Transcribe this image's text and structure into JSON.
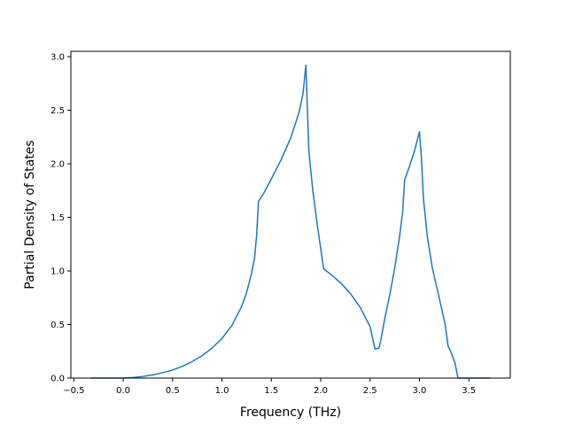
{
  "chart_data": {
    "type": "line",
    "title": "",
    "xlabel": "Frequency (THz)",
    "ylabel": "Partial Density of States",
    "xlim": [
      -0.53,
      3.92
    ],
    "ylim": [
      0.0,
      3.05
    ],
    "grid": false,
    "legend": "none",
    "x_ticks": [
      -0.5,
      0.0,
      0.5,
      1.0,
      1.5,
      2.0,
      2.5,
      3.0,
      3.5
    ],
    "x_tick_labels": [
      "−0.5",
      "0.0",
      "0.5",
      "1.0",
      "1.5",
      "2.0",
      "2.5",
      "3.0",
      "3.5"
    ],
    "y_ticks": [
      0.0,
      0.5,
      1.0,
      1.5,
      2.0,
      2.5,
      3.0
    ],
    "y_tick_labels": [
      "0.0",
      "0.5",
      "1.0",
      "1.5",
      "2.0",
      "2.5",
      "3.0"
    ],
    "series": [
      {
        "color": "#1f77b4",
        "x": [
          -0.33,
          0.0,
          0.1,
          0.2,
          0.3,
          0.4,
          0.5,
          0.6,
          0.7,
          0.8,
          0.9,
          1.0,
          1.1,
          1.2,
          1.25,
          1.3,
          1.33,
          1.35,
          1.37,
          1.42,
          1.5,
          1.6,
          1.7,
          1.78,
          1.82,
          1.85,
          1.88,
          1.92,
          1.97,
          2.03,
          2.1,
          2.2,
          2.3,
          2.4,
          2.5,
          2.55,
          2.59,
          2.61,
          2.65,
          2.7,
          2.75,
          2.8,
          2.83,
          2.85,
          2.9,
          2.95,
          3.0,
          3.02,
          3.04,
          3.08,
          3.13,
          3.2,
          3.26,
          3.29,
          3.32,
          3.36,
          3.39,
          3.42,
          3.5,
          3.6,
          3.72
        ],
        "y": [
          0.0,
          0.0,
          0.005,
          0.015,
          0.03,
          0.05,
          0.075,
          0.11,
          0.155,
          0.21,
          0.28,
          0.37,
          0.49,
          0.67,
          0.8,
          0.98,
          1.12,
          1.32,
          1.65,
          1.72,
          1.86,
          2.04,
          2.25,
          2.48,
          2.65,
          2.92,
          2.12,
          1.75,
          1.4,
          1.02,
          0.97,
          0.89,
          0.79,
          0.66,
          0.48,
          0.27,
          0.28,
          0.36,
          0.56,
          0.78,
          1.03,
          1.33,
          1.55,
          1.85,
          1.98,
          2.12,
          2.3,
          2.05,
          1.68,
          1.32,
          1.03,
          0.75,
          0.5,
          0.3,
          0.24,
          0.14,
          0.0,
          0.0,
          0.0,
          0.0,
          0.0
        ]
      }
    ]
  }
}
